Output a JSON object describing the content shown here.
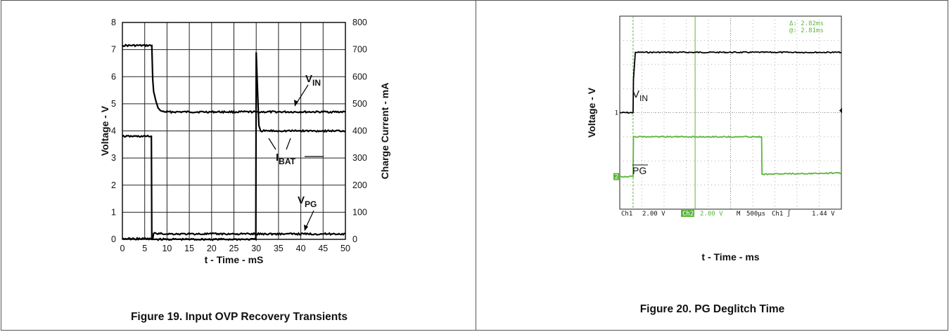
{
  "chart_data": [
    {
      "type": "line",
      "title": "Figure 19. Input OVP Recovery Transients",
      "xlabel": "t - Time - mS",
      "ylabel": "Voltage - V",
      "y2label": "Charge Current - mA",
      "xlim": [
        0,
        50
      ],
      "ylim": [
        0,
        8
      ],
      "y2lim": [
        0,
        800
      ],
      "xticks": [
        "0",
        "5",
        "10",
        "15",
        "20",
        "25",
        "30",
        "35",
        "40",
        "45",
        "50"
      ],
      "yticks": [
        "0",
        "1",
        "2",
        "3",
        "4",
        "5",
        "6",
        "7",
        "8"
      ],
      "y2ticks": [
        "0",
        "100",
        "200",
        "300",
        "400",
        "500",
        "600",
        "700",
        "800"
      ],
      "grid": true,
      "annotations": [
        {
          "main": "V",
          "sub": "IN"
        },
        {
          "main": "I",
          "sub": "BAT"
        },
        {
          "main": "V",
          "sub": "PG"
        }
      ],
      "series": [
        {
          "axis": "left",
          "x": [
            0,
            6.6,
            6.8,
            7,
            7.5,
            8,
            8.5,
            9,
            10,
            12,
            15,
            20,
            25,
            30,
            35,
            40,
            45,
            50
          ],
          "y": [
            7.15,
            7.15,
            5.9,
            5.45,
            5.1,
            4.85,
            4.75,
            4.72,
            4.7,
            4.7,
            4.7,
            4.7,
            4.7,
            4.7,
            4.7,
            4.7,
            4.7,
            4.7
          ]
        },
        {
          "axis": "right",
          "x": [
            0,
            6.5,
            6.6,
            7.2,
            7.3,
            10,
            15,
            20,
            25,
            29.9,
            30,
            30.3,
            30.6,
            31,
            35,
            40,
            45,
            50
          ],
          "y": [
            380,
            380,
            0,
            0,
            0,
            0,
            0,
            0,
            0,
            0,
            690,
            550,
            420,
            400,
            400,
            400,
            400,
            400
          ]
        },
        {
          "axis": "left",
          "x": [
            0,
            6.8,
            7,
            10,
            15,
            20,
            25,
            30,
            35,
            40,
            45,
            50
          ],
          "y": [
            0.02,
            0.02,
            0.22,
            0.2,
            0.2,
            0.2,
            0.2,
            0.2,
            0.2,
            0.2,
            0.2,
            0.2
          ]
        }
      ]
    },
    {
      "type": "line",
      "title": "Figure 20. PG Deglitch Time",
      "xlabel": "t - Time - ms",
      "ylabel": "Voltage - V",
      "xlim": [
        0,
        10
      ],
      "ylim": [
        -4,
        4
      ],
      "grid": true,
      "annotations": [
        {
          "main": "V",
          "sub": "IN"
        },
        {
          "main": "PG",
          "overline": true
        }
      ],
      "markers": {
        "ch1": "1",
        "ch2": "2"
      },
      "cursor_readout": [
        "Δ: 2.82ms",
        "@: 2.81ms"
      ],
      "scope_status": [
        "Ch1",
        "2.00 V",
        "Ch2",
        "2.00 V",
        "M",
        "500μs",
        "Ch1 ∫",
        "1.44 V"
      ],
      "cursors_x": [
        0.6,
        3.4
      ],
      "series": [
        {
          "name": "V",
          "x": [
            0,
            0.6,
            0.62,
            0.7,
            0.75,
            10
          ],
          "y": [
            0,
            0,
            1.4,
            2.5,
            2.5,
            2.5
          ]
        },
        {
          "name": "PG",
          "x": [
            0,
            0.6,
            0.62,
            6.4,
            6.42,
            10
          ],
          "y": [
            -2.65,
            -2.65,
            -1.0,
            -1.0,
            -2.55,
            -2.5
          ]
        }
      ],
      "colors": {
        "ch1": "#000000",
        "ch2": "#5cb53c"
      }
    }
  ]
}
